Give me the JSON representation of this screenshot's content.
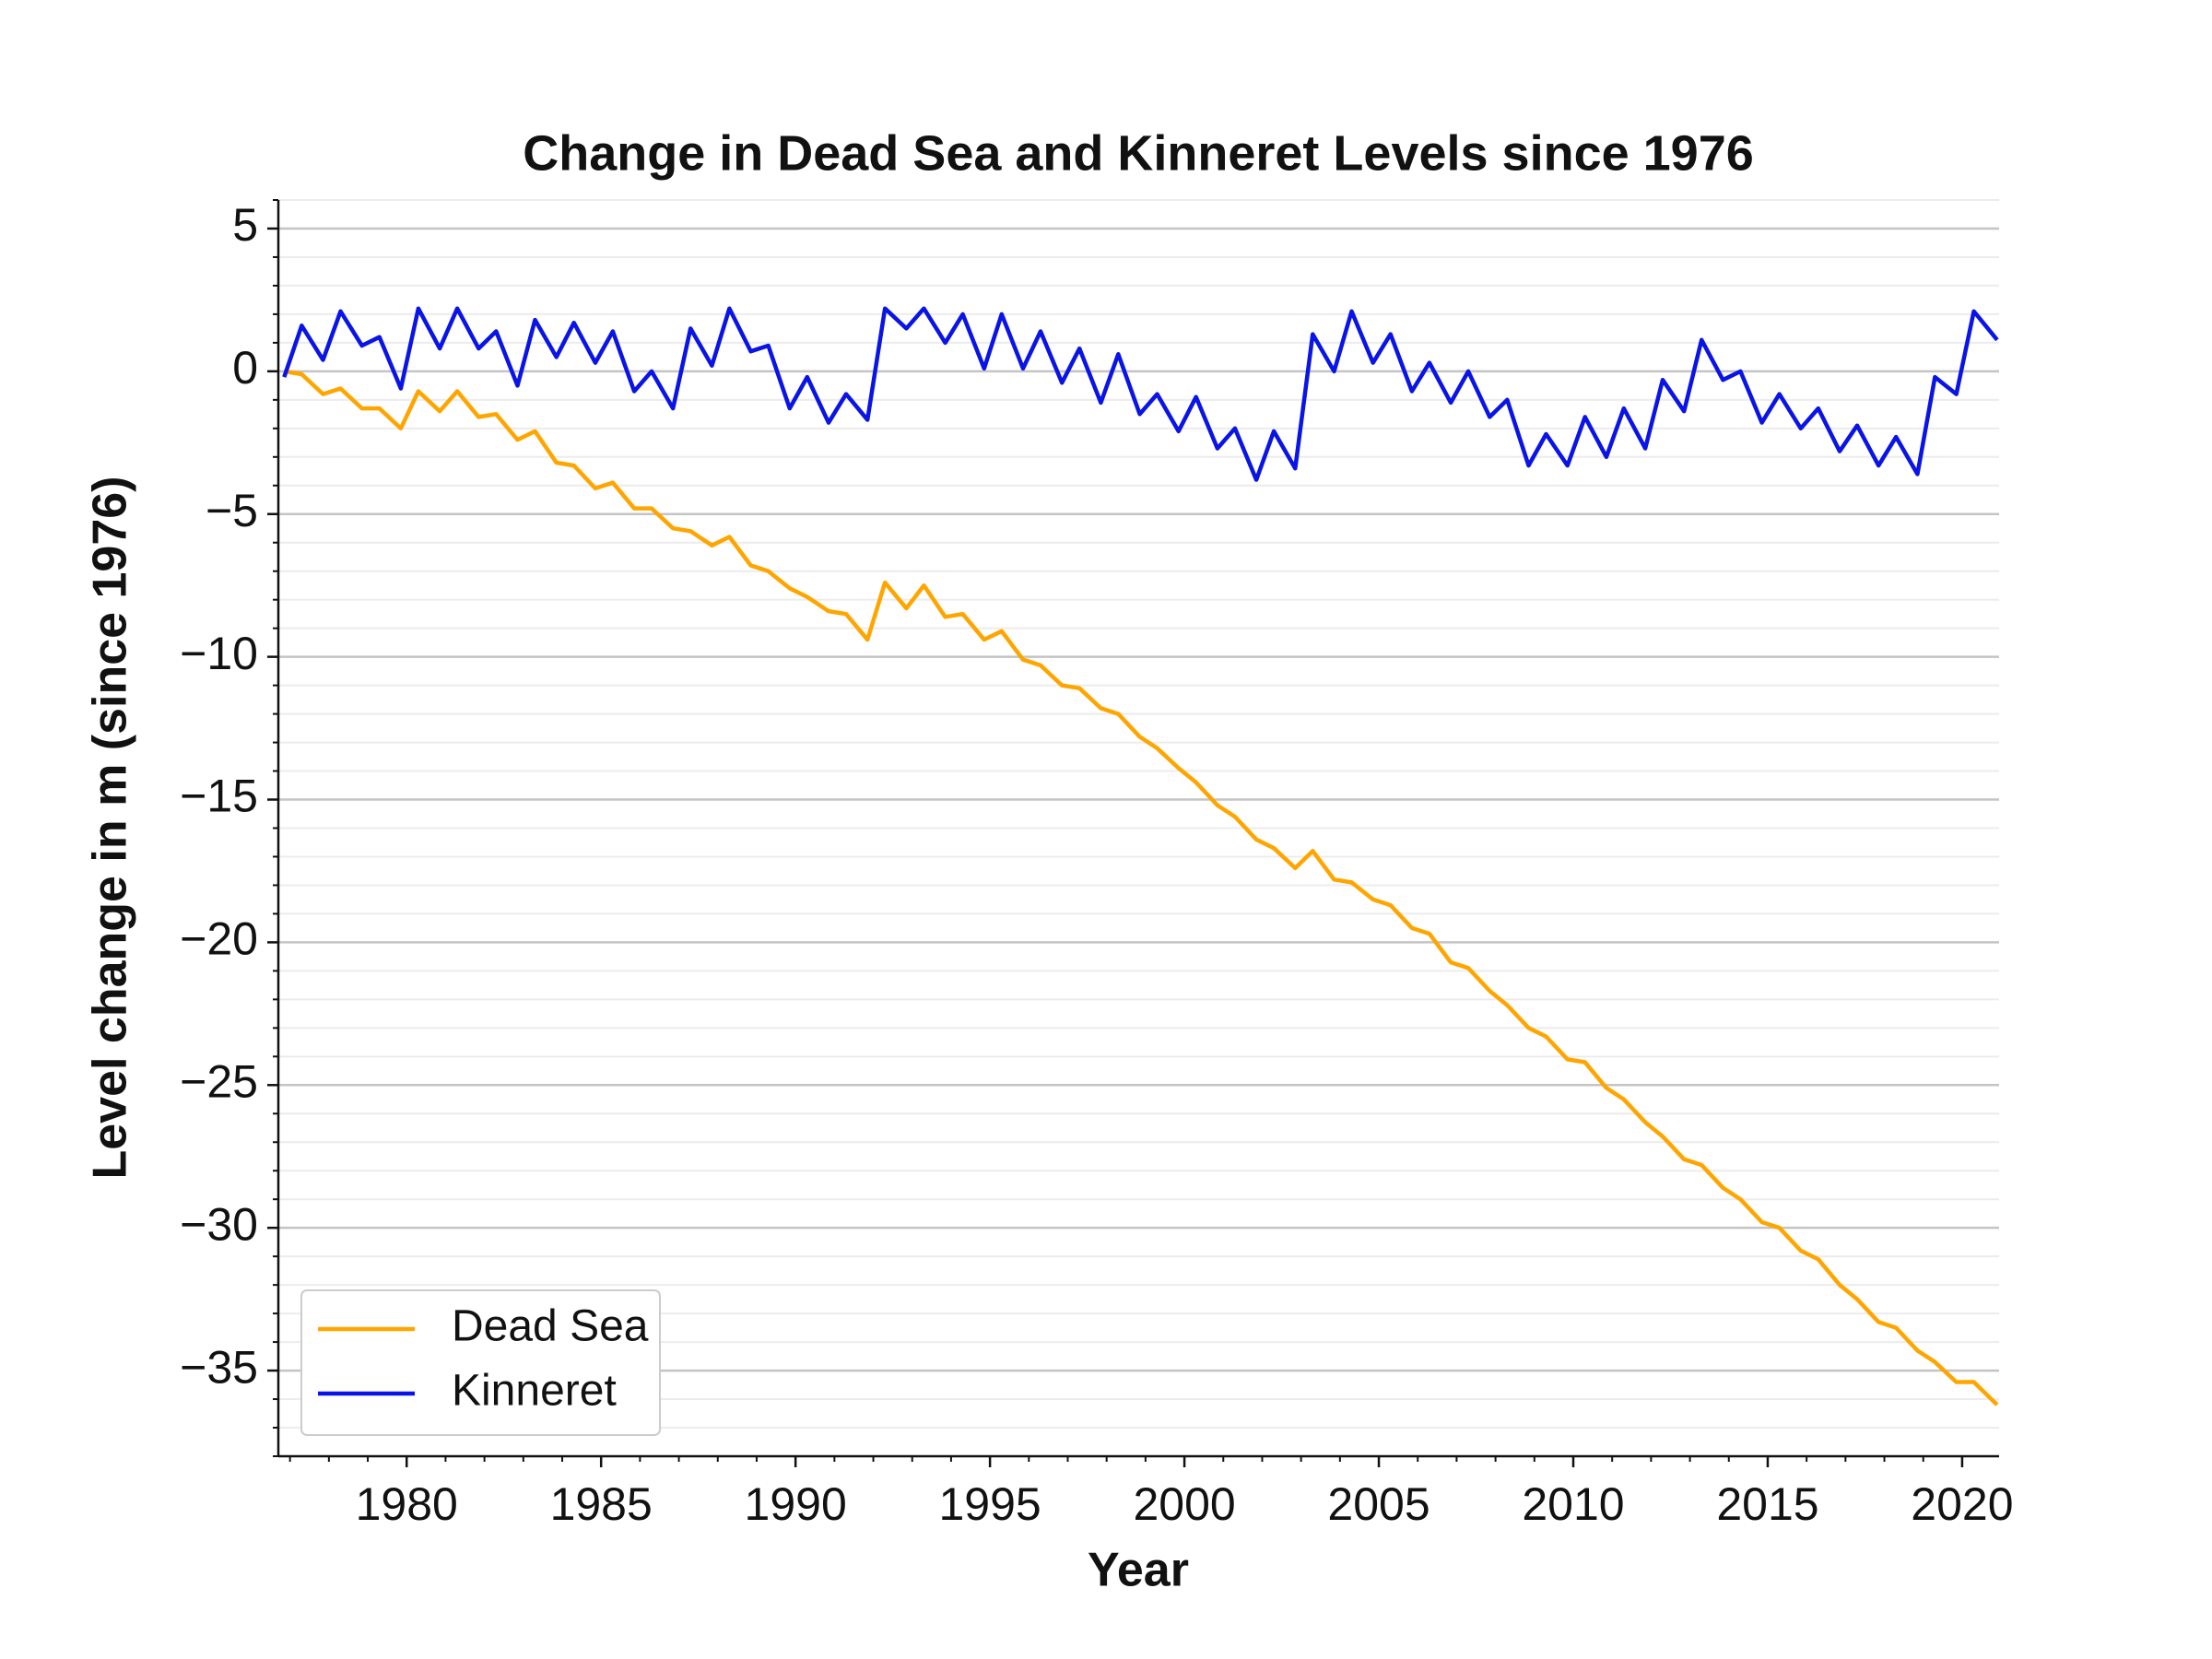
{
  "chart_data": {
    "type": "line",
    "title": "Change in Dead Sea and Kinneret Levels since 1976",
    "x_label": "Year",
    "y_label": "Level change in m (since 1976)",
    "x": [
      1976.85,
      1977.3,
      1977.85,
      1978.3,
      1978.85,
      1979.3,
      1979.85,
      1980.3,
      1980.85,
      1981.3,
      1981.85,
      1982.3,
      1982.85,
      1983.3,
      1983.85,
      1984.3,
      1984.85,
      1985.3,
      1985.85,
      1986.3,
      1986.85,
      1987.3,
      1987.85,
      1988.3,
      1988.85,
      1989.3,
      1989.85,
      1990.3,
      1990.85,
      1991.3,
      1991.85,
      1992.3,
      1992.85,
      1993.3,
      1993.85,
      1994.3,
      1994.85,
      1995.3,
      1995.85,
      1996.3,
      1996.85,
      1997.3,
      1997.85,
      1998.3,
      1998.85,
      1999.3,
      1999.85,
      2000.3,
      2000.85,
      2001.3,
      2001.85,
      2002.3,
      2002.85,
      2003.3,
      2003.85,
      2004.3,
      2004.85,
      2005.3,
      2005.85,
      2006.3,
      2006.85,
      2007.3,
      2007.85,
      2008.3,
      2008.85,
      2009.3,
      2009.85,
      2010.3,
      2010.85,
      2011.3,
      2011.85,
      2012.3,
      2012.85,
      2013.3,
      2013.85,
      2014.3,
      2014.85,
      2015.3,
      2015.85,
      2016.3,
      2016.85,
      2017.3,
      2017.85,
      2018.3,
      2018.85,
      2019.3,
      2019.85,
      2020.3,
      2020.9
    ],
    "series": [
      {
        "name": "Dead Sea",
        "color": "#ffa500",
        "values": [
          0,
          -0.1,
          -0.8,
          -0.6,
          -1.3,
          -1.3,
          -2.0,
          -0.7,
          -1.4,
          -0.7,
          -1.6,
          -1.5,
          -2.4,
          -2.1,
          -3.2,
          -3.3,
          -4.1,
          -3.9,
          -4.8,
          -4.8,
          -5.5,
          -5.6,
          -6.1,
          -5.8,
          -6.8,
          -7.0,
          -7.6,
          -7.9,
          -8.4,
          -8.5,
          -9.4,
          -7.4,
          -8.3,
          -7.5,
          -8.6,
          -8.5,
          -9.4,
          -9.1,
          -10.1,
          -10.3,
          -11.0,
          -11.1,
          -11.8,
          -12.0,
          -12.8,
          -13.2,
          -13.9,
          -14.4,
          -15.2,
          -15.6,
          -16.4,
          -16.7,
          -17.4,
          -16.8,
          -17.8,
          -17.9,
          -18.5,
          -18.7,
          -19.5,
          -19.7,
          -20.7,
          -20.9,
          -21.7,
          -22.2,
          -23.0,
          -23.3,
          -24.1,
          -24.2,
          -25.1,
          -25.5,
          -26.3,
          -26.8,
          -27.6,
          -27.8,
          -28.6,
          -29.0,
          -29.8,
          -30.0,
          -30.8,
          -31.1,
          -32.0,
          -32.5,
          -33.3,
          -33.5,
          -34.3,
          -34.7,
          -35.4,
          -35.4,
          -36.2
        ]
      },
      {
        "name": "Kinneret",
        "color": "#0a14e6",
        "values": [
          -0.2,
          1.6,
          0.4,
          2.1,
          0.9,
          1.2,
          -0.6,
          2.2,
          0.8,
          2.2,
          0.8,
          1.4,
          -0.5,
          1.8,
          0.5,
          1.7,
          0.3,
          1.4,
          -0.7,
          0.0,
          -1.3,
          1.5,
          0.2,
          2.2,
          0.7,
          0.9,
          -1.3,
          -0.2,
          -1.8,
          -0.8,
          -1.7,
          2.2,
          1.5,
          2.2,
          1.0,
          2.0,
          0.1,
          2.0,
          0.1,
          1.4,
          -0.4,
          0.8,
          -1.1,
          0.6,
          -1.5,
          -0.8,
          -2.1,
          -0.9,
          -2.7,
          -2.0,
          -3.8,
          -2.1,
          -3.4,
          1.3,
          0.0,
          2.1,
          0.3,
          1.3,
          -0.7,
          0.3,
          -1.1,
          0.0,
          -1.6,
          -1.0,
          -3.3,
          -2.2,
          -3.3,
          -1.6,
          -3.0,
          -1.3,
          -2.7,
          -0.3,
          -1.4,
          1.1,
          -0.3,
          0.0,
          -1.8,
          -0.8,
          -2.0,
          -1.3,
          -2.8,
          -1.9,
          -3.3,
          -2.3,
          -3.6,
          -0.2,
          -0.8,
          2.1,
          1.1
        ]
      }
    ],
    "xlim": [
      1976.7,
      2020.95
    ],
    "xticks": [
      1980,
      1985,
      1990,
      1995,
      2000,
      2005,
      2010,
      2015,
      2020
    ],
    "xminorticks": [
      1977,
      1978,
      1979,
      1981,
      1982,
      1983,
      1984,
      1986,
      1987,
      1988,
      1989,
      1991,
      1992,
      1993,
      1994,
      1996,
      1997,
      1998,
      1999,
      2001,
      2002,
      2003,
      2004,
      2006,
      2007,
      2008,
      2009,
      2011,
      2012,
      2013,
      2014,
      2016,
      2017,
      2018,
      2019
    ],
    "ylim": [
      -38,
      6
    ],
    "yticks": [
      {
        "value": -35,
        "label": "−35"
      },
      {
        "value": -30,
        "label": "−30"
      },
      {
        "value": -25,
        "label": "−25"
      },
      {
        "value": -20,
        "label": "−20"
      },
      {
        "value": -15,
        "label": "−15"
      },
      {
        "value": -10,
        "label": "−10"
      },
      {
        "value": -5,
        "label": "−5"
      },
      0,
      5
    ],
    "yminorticks": [
      -38,
      -37,
      -36,
      -34,
      -33,
      -32,
      -31,
      -29,
      -28,
      -27,
      -26,
      -24,
      -23,
      -22,
      -21,
      -19,
      -18,
      -17,
      -16,
      -14,
      -13,
      -12,
      -11,
      -9,
      -8,
      -7,
      -6,
      -4,
      -3,
      -2,
      -1,
      1,
      2,
      3,
      4,
      6
    ],
    "grid": true,
    "legend": "lower left"
  }
}
